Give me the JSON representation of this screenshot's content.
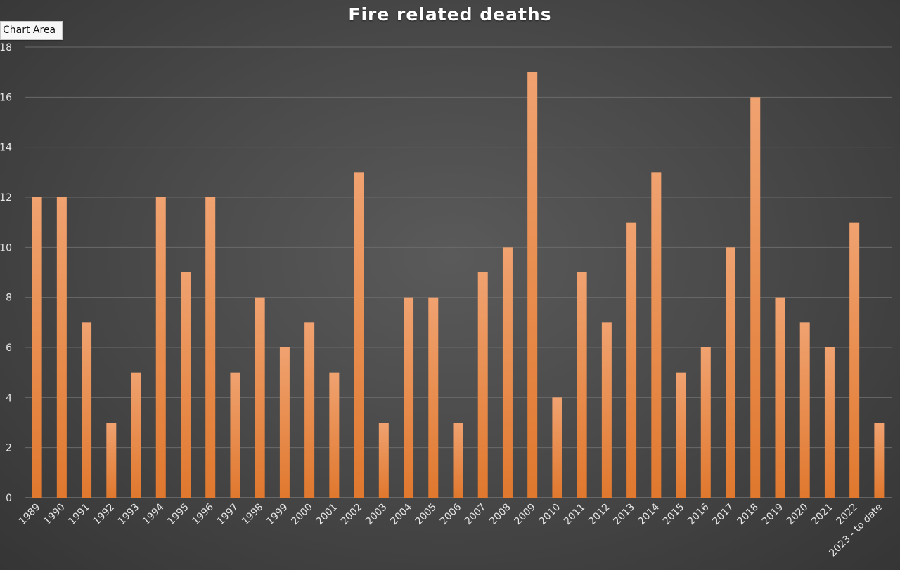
{
  "tooltip": "Chart Area",
  "chart_data": {
    "type": "bar",
    "title": "Fire related deaths",
    "xlabel": "",
    "ylabel": "",
    "ylim": [
      0,
      18
    ],
    "yticks": [
      0,
      2,
      4,
      6,
      8,
      10,
      12,
      14,
      16,
      18
    ],
    "grid": true,
    "legend": "none",
    "bar_color": "#e8873f",
    "categories": [
      "1989",
      "1990",
      "1991",
      "1992",
      "1993",
      "1994",
      "1995",
      "1996",
      "1997",
      "1998",
      "1999",
      "2000",
      "2001",
      "2002",
      "2003",
      "2004",
      "2005",
      "2006",
      "2007",
      "2008",
      "2009",
      "2010",
      "2011",
      "2012",
      "2013",
      "2014",
      "2015",
      "2016",
      "2017",
      "2018",
      "2019",
      "2020",
      "2021",
      "2022",
      "2023 - to date"
    ],
    "values": [
      12,
      12,
      7,
      3,
      5,
      12,
      9,
      12,
      5,
      8,
      6,
      7,
      5,
      13,
      3,
      8,
      8,
      3,
      9,
      10,
      17,
      4,
      9,
      7,
      11,
      13,
      5,
      6,
      10,
      16,
      8,
      7,
      6,
      11,
      3
    ]
  }
}
